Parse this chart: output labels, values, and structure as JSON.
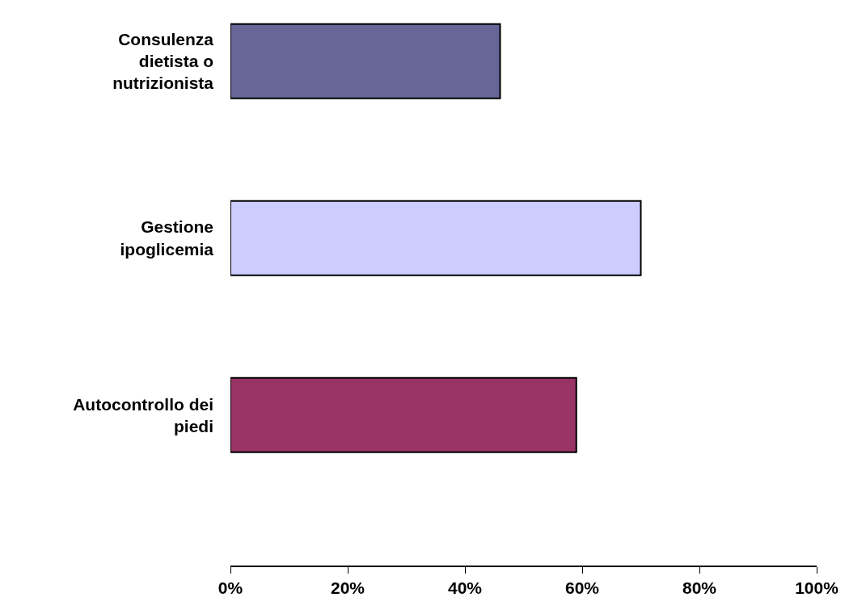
{
  "chart_data": {
    "type": "bar",
    "orientation": "horizontal",
    "categories": [
      "Consulenza dietista o nutrizionista",
      "Gestione ipoglicemia",
      "Autocontrollo dei piedi"
    ],
    "values": [
      46,
      70,
      59
    ],
    "colors": [
      "#666699",
      "#ccccff",
      "#993366"
    ],
    "xlim": [
      0,
      100
    ],
    "xticks": [
      {
        "value": 0,
        "label": "0%"
      },
      {
        "value": 20,
        "label": "20%"
      },
      {
        "value": 40,
        "label": "40%"
      },
      {
        "value": 60,
        "label": "60%"
      },
      {
        "value": 80,
        "label": "80%"
      },
      {
        "value": 100,
        "label": "100%"
      }
    ]
  }
}
